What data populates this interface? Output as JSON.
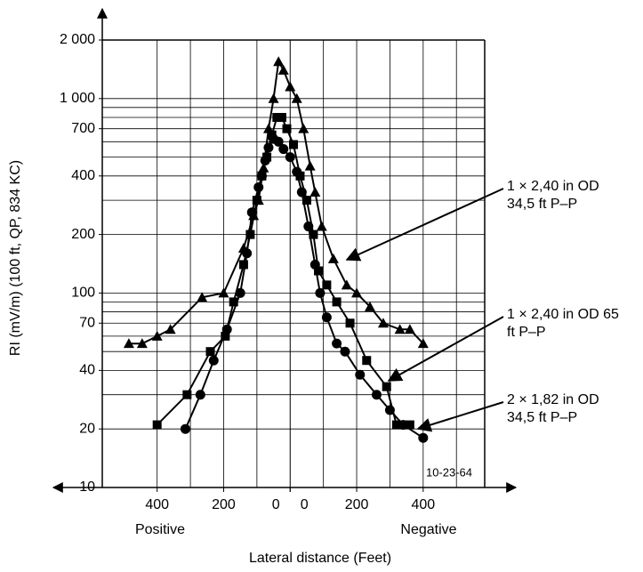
{
  "chart_data": {
    "type": "line",
    "x_label": "Lateral distance   (Feet)",
    "y_label": "RI  (mV/m) (100 ft, QP, 834 KC)",
    "side_labels": [
      "Positive",
      "Negative"
    ],
    "stamp": "10-23-64",
    "log_y": true,
    "grid": true,
    "xlim": [
      -565,
      585
    ],
    "ylim": [
      10,
      2000
    ],
    "xticks": [
      {
        "value": -400,
        "label": "400"
      },
      {
        "value": -200,
        "label": "200"
      },
      {
        "value": 0,
        "label": "0"
      },
      {
        "value": 0,
        "label": "0"
      },
      200,
      400
    ],
    "x_minor_grid": [
      -300,
      -100,
      100,
      300,
      500
    ],
    "yticks": [
      {
        "value": 2000,
        "label": "2 000"
      },
      {
        "value": 1000,
        "label": "1 000"
      },
      700,
      400,
      200,
      100,
      70,
      40,
      20,
      10
    ],
    "y_minor_grid": [
      900,
      800,
      600,
      500,
      300,
      90,
      80,
      60,
      50,
      30
    ],
    "series": [
      {
        "name": "1 × 2,40 in OD 34,5 ft P–P",
        "color": "#000000",
        "marker": "triangle",
        "x": [
          -485,
          -445,
          -400,
          -360,
          -265,
          -200,
          -140,
          -110,
          -95,
          -80,
          -65,
          -50,
          -35,
          -20,
          0,
          20,
          40,
          60,
          75,
          95,
          130,
          170,
          200,
          240,
          280,
          330,
          360,
          400
        ],
        "values": [
          55,
          55,
          60,
          65,
          95,
          100,
          170,
          250,
          300,
          440,
          700,
          1000,
          1550,
          1400,
          1150,
          1000,
          700,
          450,
          330,
          220,
          150,
          110,
          100,
          85,
          70,
          65,
          65,
          55
        ]
      },
      {
        "name": "1 × 2,40 in OD 65 ft P–P",
        "color": "#000000",
        "marker": "square",
        "x": [
          -400,
          -310,
          -240,
          -195,
          -170,
          -140,
          -120,
          -100,
          -85,
          -70,
          -55,
          -40,
          -25,
          -10,
          10,
          30,
          50,
          70,
          85,
          110,
          140,
          180,
          230,
          290,
          320,
          360
        ],
        "values": [
          21,
          30,
          50,
          60,
          90,
          140,
          200,
          300,
          400,
          500,
          650,
          800,
          800,
          700,
          580,
          400,
          300,
          200,
          130,
          110,
          90,
          70,
          45,
          33,
          21,
          21
        ]
      },
      {
        "name": "2 × 1,82 in OD 34,5 ft P–P",
        "color": "#000000",
        "marker": "circle",
        "x": [
          -315,
          -270,
          -230,
          -190,
          -150,
          -130,
          -115,
          -95,
          -85,
          -75,
          -65,
          -50,
          -35,
          -20,
          0,
          20,
          35,
          55,
          75,
          90,
          110,
          140,
          165,
          210,
          260,
          300,
          340,
          400
        ],
        "values": [
          20,
          30,
          45,
          65,
          100,
          160,
          260,
          350,
          400,
          480,
          560,
          620,
          600,
          550,
          500,
          420,
          330,
          220,
          140,
          100,
          75,
          55,
          50,
          38,
          30,
          25,
          21,
          18
        ]
      }
    ]
  }
}
